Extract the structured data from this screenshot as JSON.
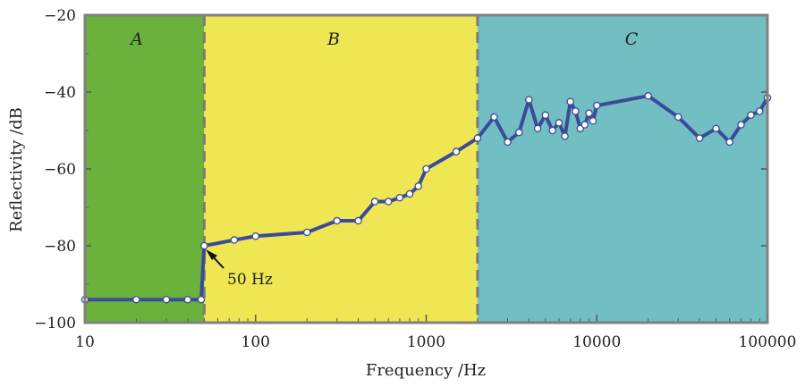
{
  "chart_data": {
    "type": "line",
    "xscale": "log",
    "xlabel": "Frequency /Hz",
    "ylabel": "Reflectivity /dB",
    "xlim": [
      10,
      100000
    ],
    "ylim": [
      -100,
      -20
    ],
    "xticks": [
      10,
      100,
      1000,
      10000,
      100000
    ],
    "xtick_labels": [
      "10",
      "100",
      "1000",
      "10000",
      "100000"
    ],
    "yticks": [
      -100,
      -80,
      -60,
      -40,
      -20
    ],
    "ytick_labels": [
      "−100",
      "−80",
      "−60",
      "−40",
      "−20"
    ],
    "regions": [
      {
        "label": "A",
        "x_range": [
          10,
          50
        ],
        "color": "#6ab23c"
      },
      {
        "label": "B",
        "x_range": [
          50,
          2000
        ],
        "color": "#eee653"
      },
      {
        "label": "C",
        "x_range": [
          2000,
          100000
        ],
        "color": "#71bfc3"
      }
    ],
    "boundaries": [
      50,
      2000
    ],
    "series": [
      {
        "name": "Reflectivity",
        "color": "#3b4a9a",
        "x": [
          10,
          20,
          30,
          40,
          48,
          50,
          75,
          100,
          200,
          300,
          400,
          500,
          600,
          700,
          800,
          900,
          1000,
          1500,
          2000,
          2500,
          3000,
          3500,
          4000,
          4500,
          5000,
          5500,
          6000,
          6500,
          7000,
          7500,
          8000,
          8500,
          9000,
          9500,
          10000,
          20000,
          30000,
          40000,
          50000,
          60000,
          70000,
          80000,
          90000,
          100000
        ],
        "y": [
          -94,
          -94,
          -94,
          -94,
          -94,
          -80,
          -78.5,
          -77.5,
          -76.5,
          -73.5,
          -73.5,
          -68.5,
          -68.5,
          -67.5,
          -66.5,
          -64.5,
          -60,
          -55.5,
          -52,
          -46.5,
          -53,
          -50.5,
          -42,
          -49.5,
          -46,
          -50,
          -48,
          -51.5,
          -42.5,
          -45,
          -49.5,
          -48.5,
          -45.5,
          -47.5,
          -43.5,
          -41,
          -46.5,
          -52,
          -49.5,
          -53,
          -48.5,
          -46,
          -45,
          -41.5
        ]
      }
    ],
    "annotations": [
      {
        "text": "50 Hz",
        "x": 50,
        "y": -80
      }
    ]
  }
}
